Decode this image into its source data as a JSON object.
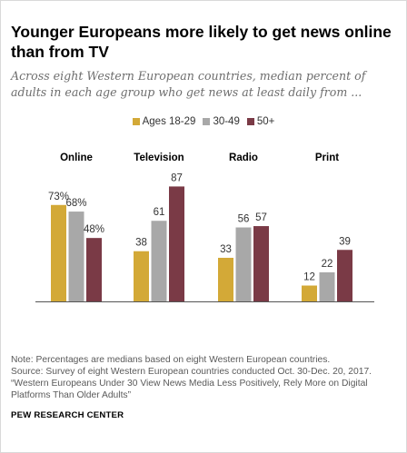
{
  "title": "Younger Europeans more likely to get news online than from TV",
  "subtitle": "Across eight Western European countries, median percent of adults in each age group who get news at least daily from ...",
  "colors": {
    "ages_18_29": "#d3a937",
    "ages_30_49": "#a8a8a8",
    "ages_50_plus": "#7a3a46"
  },
  "chart_data": {
    "type": "bar",
    "categories": [
      "Online",
      "Television",
      "Radio",
      "Print"
    ],
    "series": [
      {
        "name": "Ages 18-29",
        "values": [
          73,
          38,
          33,
          12
        ],
        "labels": [
          "73%",
          "38",
          "33",
          "12"
        ]
      },
      {
        "name": "30-49",
        "values": [
          68,
          61,
          56,
          22
        ],
        "labels": [
          "68%",
          "61",
          "56",
          "22"
        ]
      },
      {
        "name": "50+",
        "values": [
          48,
          87,
          57,
          39
        ],
        "labels": [
          "48%",
          "87",
          "57",
          "39"
        ]
      }
    ],
    "ylim": [
      0,
      100
    ],
    "legend": "top",
    "grid": false
  },
  "notes": {
    "note": "Note: Percentages are medians based on eight Western European countries.",
    "source": "Source: Survey of eight Western European countries conducted Oct. 30-Dec. 20, 2017.",
    "report": "“Western Europeans Under 30 View News Media Less Positively, Rely More on Digital Platforms Than Older Adults”"
  },
  "brand": "PEW RESEARCH CENTER"
}
